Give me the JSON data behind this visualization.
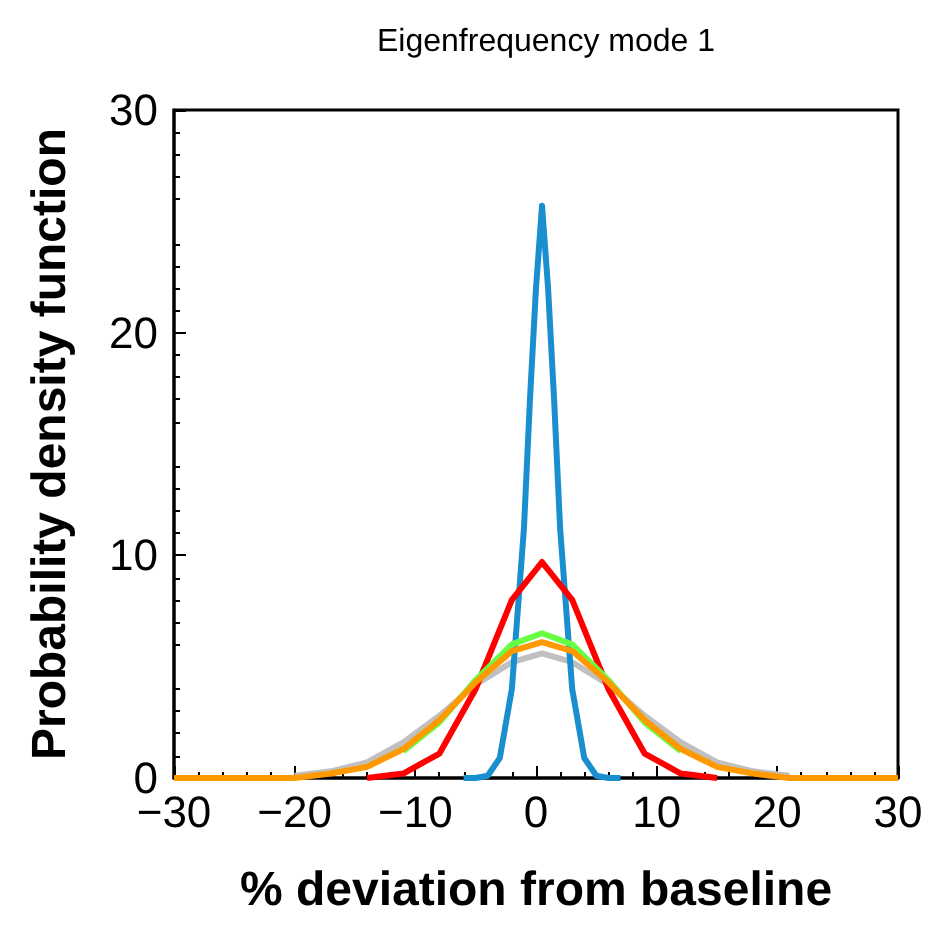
{
  "chart_data": {
    "type": "line",
    "title": "Eigenfrequency mode 1",
    "xlabel": "% deviation from baseline",
    "ylabel": "Probability density function",
    "xlim": [
      -30,
      30
    ],
    "xticks": [
      -30,
      -20,
      -10,
      0,
      10,
      20,
      30
    ],
    "ylim": [
      0,
      30
    ],
    "yticks": [
      0,
      10,
      20,
      30
    ],
    "grid": false,
    "legend": false,
    "marker": "none",
    "line_style": "solid",
    "series": [
      {
        "color": "#c0c0c0",
        "x": [
          -20,
          -17,
          -14,
          -11,
          -8,
          -5,
          -2,
          0.5,
          3,
          6,
          9,
          12,
          15,
          18,
          21
        ],
        "values": [
          0.1,
          0.3,
          0.7,
          1.6,
          2.8,
          4.2,
          5.2,
          5.6,
          5.2,
          4.2,
          2.8,
          1.6,
          0.7,
          0.3,
          0.1
        ]
      },
      {
        "color": "#1a8fd0",
        "x": [
          -6,
          -5,
          -4,
          -3,
          -2,
          -1,
          -0.5,
          0,
          0.5,
          1,
          1.5,
          2,
          3,
          4,
          5,
          6,
          7
        ],
        "values": [
          0,
          0,
          0.1,
          0.9,
          4,
          11.2,
          17,
          22,
          25.7,
          22,
          17,
          11.2,
          4,
          0.9,
          0.1,
          0,
          0
        ]
      },
      {
        "color": "#ff0000",
        "x": [
          -14,
          -11,
          -8,
          -5,
          -2,
          0.5,
          3,
          6,
          9,
          12,
          15
        ],
        "values": [
          0,
          0.2,
          1.1,
          4,
          8,
          9.7,
          8,
          4,
          1.1,
          0.2,
          0
        ]
      },
      {
        "color": "#66ff44",
        "x": [
          -11,
          -8,
          -5,
          -2,
          0.5,
          3,
          6,
          9,
          12
        ],
        "values": [
          1.2,
          2.5,
          4.4,
          6,
          6.5,
          6,
          4.4,
          2.5,
          1.2
        ]
      },
      {
        "color": "#ff9900",
        "x": [
          -30,
          -25,
          -20,
          -17,
          -14,
          -11,
          -8,
          -5,
          -2,
          0.5,
          3,
          6,
          9,
          12,
          15,
          18,
          21,
          26,
          30
        ],
        "values": [
          0,
          0,
          0,
          0.2,
          0.5,
          1.3,
          2.6,
          4.3,
          5.7,
          6.1,
          5.7,
          4.3,
          2.6,
          1.3,
          0.5,
          0.2,
          0,
          0,
          0
        ]
      }
    ]
  }
}
